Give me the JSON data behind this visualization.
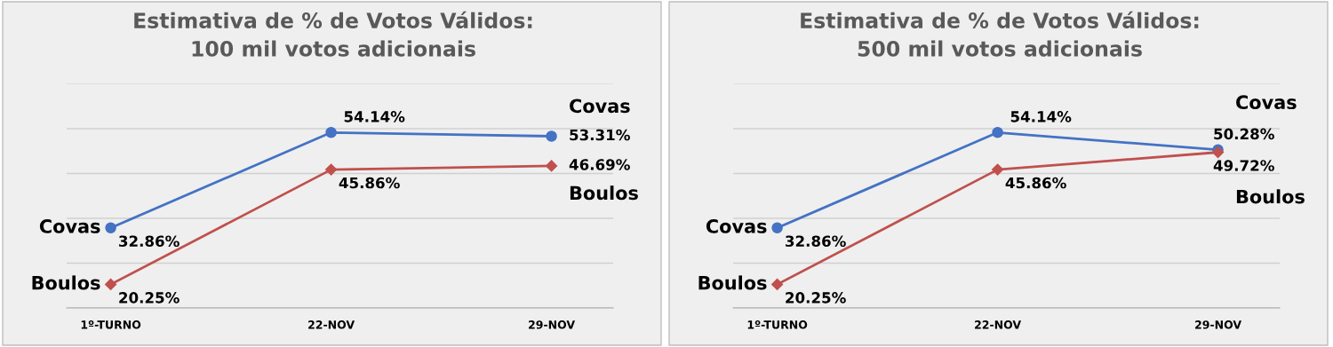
{
  "chart_data": [
    {
      "type": "line",
      "title": "Estimativa de % de Votos Válidos: 100 mil votos adicionais",
      "categories": [
        "1º-TURNO",
        "22-NOV",
        "29-NOV"
      ],
      "series": [
        {
          "name": "Covas",
          "color": "#4472c4",
          "marker": "circle",
          "values": [
            32.86,
            54.14,
            53.31
          ],
          "value_labels": [
            "32.86%",
            "54.14%",
            "53.31%"
          ]
        },
        {
          "name": "Boulos",
          "color": "#c0504d",
          "marker": "diamond",
          "values": [
            20.25,
            45.86,
            46.69
          ],
          "value_labels": [
            "20.25%",
            "45.86%",
            "46.69%"
          ]
        }
      ],
      "ylim": [
        15,
        65
      ],
      "yticks": [
        {
          "value": 15,
          "label": null
        },
        {
          "value": 25,
          "label": null
        },
        {
          "value": 35,
          "label": null
        },
        {
          "value": 45,
          "label": null
        },
        {
          "value": 55,
          "label": null
        },
        {
          "value": 65,
          "label": null
        }
      ],
      "grid": "y",
      "legend": false,
      "tick_labels": "x"
    },
    {
      "type": "line",
      "title": "Estimativa de % de Votos Válidos: 500 mil votos adicionais",
      "categories": [
        "1º-TURNO",
        "22-NOV",
        "29-NOV"
      ],
      "series": [
        {
          "name": "Covas",
          "color": "#4472c4",
          "marker": "circle",
          "values": [
            32.86,
            54.14,
            50.28
          ],
          "value_labels": [
            "32.86%",
            "54.14%",
            "50.28%"
          ]
        },
        {
          "name": "Boulos",
          "color": "#c0504d",
          "marker": "diamond",
          "values": [
            20.25,
            45.86,
            49.72
          ],
          "value_labels": [
            "20.25%",
            "45.86%",
            "49.72%"
          ]
        }
      ],
      "ylim": [
        15,
        65
      ],
      "yticks": [
        {
          "value": 15,
          "label": null
        },
        {
          "value": 25,
          "label": null
        },
        {
          "value": 35,
          "label": null
        },
        {
          "value": 45,
          "label": null
        },
        {
          "value": 55,
          "label": null
        },
        {
          "value": 65,
          "label": null
        }
      ],
      "grid": "y",
      "legend": false,
      "tick_labels": "x"
    }
  ]
}
